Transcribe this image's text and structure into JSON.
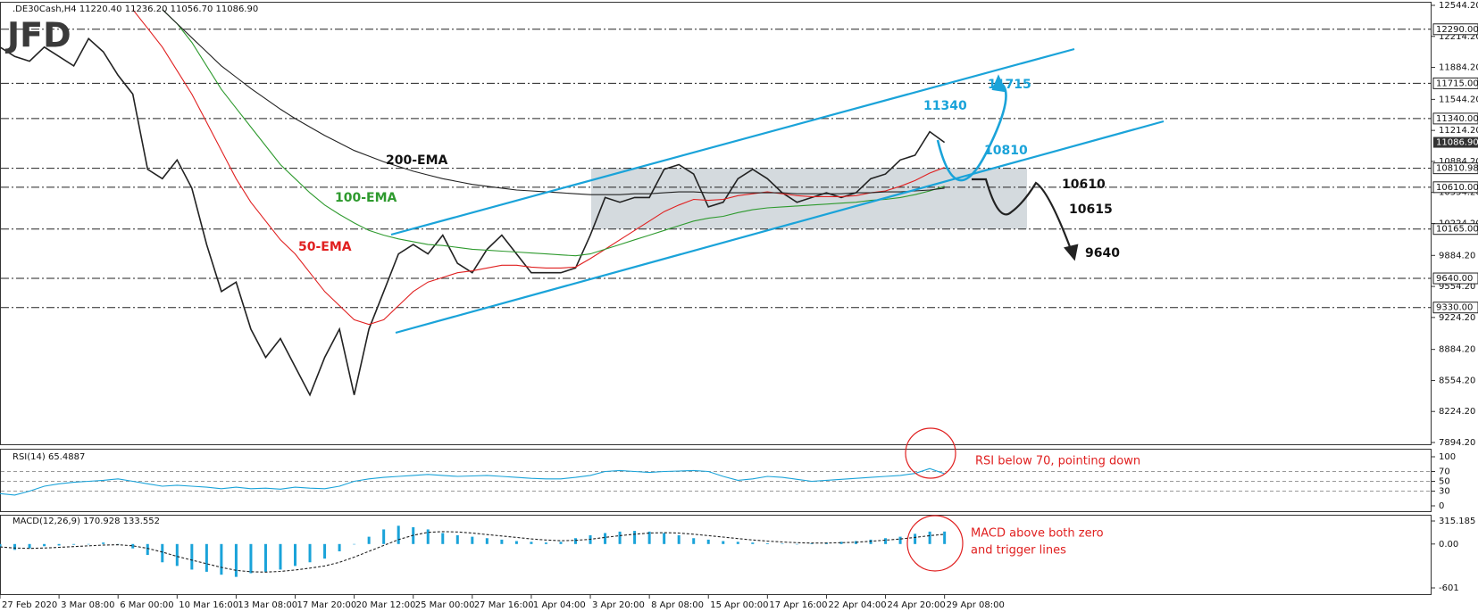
{
  "logo": "JFD",
  "chart_data": [
    {
      "type": "line",
      "title": ".DE30Cash,H4  11220.40 11236.20 11056.70 11086.90",
      "xlim": [
        0,
        97
      ],
      "xticks": [
        {
          "value": 0,
          "label": "27 Feb 2020"
        },
        {
          "value": 4,
          "label": "3 Mar 08:00"
        },
        {
          "value": 8,
          "label": "6 Mar 00:00"
        },
        {
          "value": 12,
          "label": "10 Mar 16:00"
        },
        {
          "value": 16,
          "label": "13 Mar 08:00"
        },
        {
          "value": 20,
          "label": "17 Mar 20:00"
        },
        {
          "value": 24,
          "label": "20 Mar 12:00"
        },
        {
          "value": 28,
          "label": "25 Mar 00:00"
        },
        {
          "value": 32,
          "label": "27 Mar 16:00"
        },
        {
          "value": 36,
          "label": "1 Apr 04:00"
        },
        {
          "value": 40,
          "label": "3 Apr 20:00"
        },
        {
          "value": 44,
          "label": "8 Apr 08:00"
        },
        {
          "value": 48,
          "label": "15 Apr 00:00"
        },
        {
          "value": 52,
          "label": "17 Apr 16:00"
        },
        {
          "value": 56,
          "label": "22 Apr 04:00"
        },
        {
          "value": 60,
          "label": "24 Apr 20:00"
        },
        {
          "value": 64,
          "label": "29 Apr 08:00"
        }
      ],
      "ylim": [
        7894.2,
        12544.2
      ],
      "yticks": [
        {
          "value": 12544.2,
          "label": "12544.20"
        },
        {
          "value": 12214.2,
          "label": "12214.20"
        },
        {
          "value": 11884.2,
          "label": "11884.20"
        },
        {
          "value": 11544.2,
          "label": "11544.20"
        },
        {
          "value": 11214.2,
          "label": "11214.20"
        },
        {
          "value": 10884.2,
          "label": "10884.20"
        },
        {
          "value": 10554.2,
          "label": "10554.20"
        },
        {
          "value": 10224.2,
          "label": "10224.20"
        },
        {
          "value": 9884.2,
          "label": "9884.20"
        },
        {
          "value": 9554.2,
          "label": "9554.20"
        },
        {
          "value": 9224.2,
          "label": "9224.20"
        },
        {
          "value": 8884.2,
          "label": "8884.20"
        },
        {
          "value": 8554.2,
          "label": "8554.20"
        },
        {
          "value": 8224.2,
          "label": "8224.20"
        },
        {
          "value": 7894.2,
          "label": "7894.20"
        }
      ],
      "levels": [
        {
          "value": 12290,
          "label": "12290.00"
        },
        {
          "value": 11715,
          "label": "11715.00"
        },
        {
          "value": 11340,
          "label": "11340.00"
        },
        {
          "value": 10810.98,
          "label": "10810.98"
        },
        {
          "value": 10610,
          "label": "10610.00"
        },
        {
          "value": 10165,
          "label": "10165.00"
        },
        {
          "value": 9640,
          "label": "9640.00"
        },
        {
          "value": 9330,
          "label": "9330.00"
        }
      ],
      "last_price": {
        "value": 11086.9,
        "label": "11086.90"
      },
      "annotations": [
        "11340",
        "11715",
        "10810",
        "10610",
        "10615",
        "9640"
      ],
      "series": [
        {
          "color": "#222222",
          "values": [
            12100,
            12000,
            11950,
            12100,
            12000,
            11900,
            12190,
            12050,
            11800,
            11600,
            10800,
            10700,
            10900,
            10600,
            10000,
            9500,
            9600,
            9100,
            8800,
            9000,
            8700,
            8400,
            8800,
            9100,
            8400,
            9100,
            9500,
            9900,
            10000,
            9900,
            10100,
            9800,
            9700,
            9950,
            10100,
            9900,
            9700,
            9700,
            9700,
            9750,
            10100,
            10500,
            10450,
            10500,
            10500,
            10800,
            10850,
            10750,
            10400,
            10450,
            10700,
            10800,
            10700,
            10550,
            10450,
            10500,
            10550,
            10500,
            10550,
            10700,
            10750,
            10900,
            10950,
            11200,
            11086.9
          ]
        },
        {
          "name": "50-EMA",
          "color": "#e02020",
          "values": [
            null,
            null,
            null,
            null,
            null,
            null,
            null,
            null,
            null,
            12500,
            12300,
            12100,
            11850,
            11600,
            11300,
            11000,
            10700,
            10450,
            10250,
            10050,
            9900,
            9700,
            9500,
            9350,
            9200,
            9150,
            9200,
            9350,
            9500,
            9600,
            9650,
            9700,
            9720,
            9750,
            9780,
            9780,
            9760,
            9750,
            9750,
            9760,
            9850,
            9950,
            10050,
            10150,
            10250,
            10350,
            10420,
            10480,
            10470,
            10480,
            10520,
            10540,
            10560,
            10540,
            10520,
            10510,
            10510,
            10510,
            10520,
            10550,
            10570,
            10620,
            10680,
            10760,
            10820
          ]
        },
        {
          "name": "100-EMA",
          "color": "#2e9a2e",
          "values": [
            null,
            null,
            null,
            null,
            null,
            null,
            null,
            null,
            null,
            null,
            null,
            12500,
            12350,
            12150,
            11900,
            11650,
            11450,
            11250,
            11050,
            10850,
            10700,
            10550,
            10420,
            10320,
            10230,
            10150,
            10100,
            10060,
            10030,
            10000,
            9990,
            9970,
            9950,
            9940,
            9930,
            9920,
            9910,
            9900,
            9890,
            9880,
            9900,
            9950,
            10000,
            10050,
            10100,
            10150,
            10200,
            10250,
            10280,
            10300,
            10340,
            10370,
            10390,
            10400,
            10410,
            10420,
            10430,
            10440,
            10450,
            10470,
            10480,
            10500,
            10530,
            10570,
            10620
          ]
        },
        {
          "name": "200-EMA",
          "color": "#222222",
          "values": [
            null,
            null,
            null,
            null,
            null,
            null,
            null,
            null,
            null,
            null,
            null,
            12500,
            12350,
            12200,
            12050,
            11900,
            11780,
            11660,
            11550,
            11440,
            11340,
            11250,
            11160,
            11080,
            11000,
            10940,
            10880,
            10830,
            10780,
            10740,
            10700,
            10670,
            10640,
            10620,
            10600,
            10580,
            10570,
            10560,
            10550,
            10540,
            10530,
            10530,
            10530,
            10540,
            10540,
            10550,
            10560,
            10560,
            10550,
            10550,
            10550,
            10550,
            10550,
            10550,
            10540,
            10540,
            10540,
            10540,
            10550,
            10550,
            10560,
            10560,
            10570,
            10580,
            10600
          ]
        }
      ]
    },
    {
      "type": "line",
      "title": "RSI(14) 65.4887",
      "xlim": [
        0,
        97
      ],
      "ylim": [
        0,
        100
      ],
      "yticks": [
        100,
        70,
        50,
        30,
        0
      ],
      "grid": true,
      "annotations": [
        "RSI below 70, pointing down"
      ],
      "series": [
        {
          "color": "#1aa3d9",
          "values": [
            25,
            22,
            30,
            40,
            45,
            48,
            50,
            52,
            55,
            50,
            45,
            40,
            42,
            40,
            38,
            35,
            38,
            35,
            36,
            34,
            38,
            36,
            35,
            40,
            50,
            55,
            58,
            60,
            62,
            64,
            62,
            60,
            61,
            62,
            60,
            58,
            56,
            55,
            55,
            58,
            62,
            70,
            72,
            70,
            68,
            70,
            71,
            72,
            70,
            60,
            52,
            55,
            60,
            58,
            54,
            50,
            52,
            54,
            56,
            58,
            60,
            62,
            66,
            76,
            65.4887
          ]
        }
      ]
    },
    {
      "type": "bar",
      "title": "MACD(12,26,9) 170.928 133.552",
      "xlim": [
        0,
        97
      ],
      "ylim": [
        -601,
        315.185
      ],
      "yticks": [
        315.185,
        {
          "value": 0,
          "label": "0.00"
        },
        -601
      ],
      "annotations": [
        "MACD above both zero",
        "and trigger lines"
      ],
      "series": [
        {
          "color": "#1aa3d9",
          "values": [
            -50,
            -80,
            -60,
            -30,
            -20,
            -10,
            0,
            20,
            0,
            -60,
            -150,
            -250,
            -300,
            -350,
            -380,
            -420,
            -450,
            -400,
            -380,
            -350,
            -300,
            -250,
            -200,
            -100,
            0,
            100,
            200,
            250,
            230,
            200,
            150,
            120,
            100,
            80,
            60,
            40,
            30,
            20,
            30,
            80,
            120,
            150,
            170,
            180,
            170,
            150,
            120,
            80,
            60,
            40,
            30,
            20,
            10,
            5,
            0,
            10,
            20,
            30,
            40,
            60,
            80,
            100,
            140,
            170,
            170.928
          ]
        },
        {
          "type": "line",
          "dashed": true,
          "color": "#222222",
          "values": [
            -40,
            -55,
            -60,
            -55,
            -45,
            -35,
            -25,
            -15,
            -10,
            -25,
            -60,
            -110,
            -170,
            -220,
            -270,
            -320,
            -360,
            -380,
            -385,
            -375,
            -355,
            -330,
            -300,
            -250,
            -180,
            -100,
            -20,
            60,
            120,
            160,
            170,
            165,
            150,
            130,
            110,
            90,
            70,
            55,
            45,
            50,
            65,
            90,
            115,
            135,
            150,
            155,
            150,
            135,
            115,
            95,
            75,
            55,
            40,
            28,
            18,
            14,
            14,
            18,
            25,
            38,
            52,
            68,
            90,
            115,
            133.552
          ]
        }
      ]
    }
  ]
}
